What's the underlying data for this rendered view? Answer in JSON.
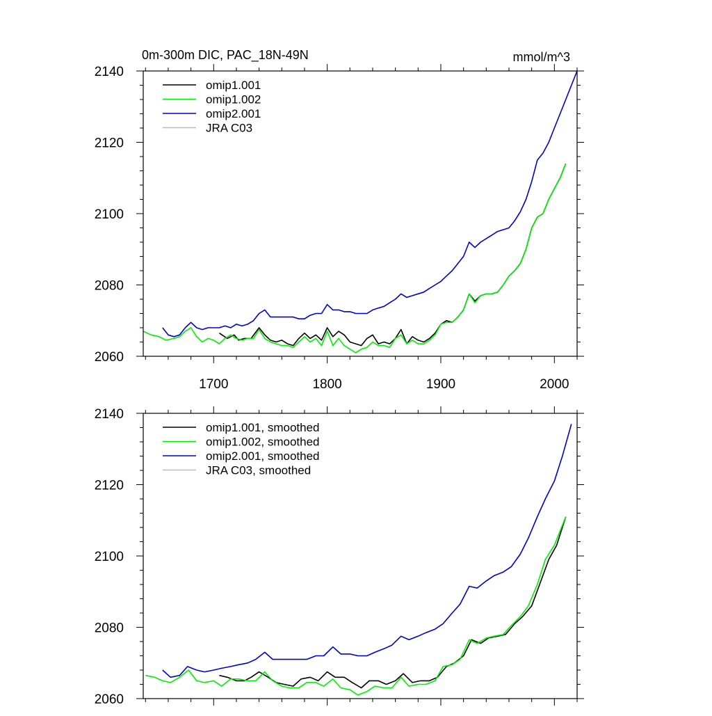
{
  "chart_data": [
    {
      "type": "line",
      "title": "0m-300m DIC, PAC_18N-49N",
      "units": "mmol/m^3",
      "xlim": [
        1638,
        2020
      ],
      "ylim": [
        2060,
        2140
      ],
      "xticks": [
        1700,
        1800,
        1900,
        2000
      ],
      "yticks": [
        2060,
        2080,
        2100,
        2120,
        2140
      ],
      "grid": false,
      "legend_position": "top-left",
      "colors": {
        "omip1.001": "#000000",
        "omip1.002": "#00ee00",
        "omip2.001": "#0000cc",
        "JRA C03": "#bbbbbb"
      },
      "series": [
        {
          "name": "omip1.001",
          "color": "#000000",
          "x": [
            1705,
            1712,
            1718,
            1722,
            1727,
            1733,
            1740,
            1745,
            1750,
            1755,
            1760,
            1765,
            1770,
            1775,
            1780,
            1785,
            1790,
            1795,
            1800,
            1805,
            1810,
            1815,
            1820,
            1825,
            1830,
            1835,
            1840,
            1845,
            1850,
            1855,
            1860,
            1865,
            1870,
            1875,
            1880,
            1885,
            1890,
            1895,
            1900,
            1905,
            1910,
            1915,
            1920,
            1925,
            1930,
            1935,
            1940,
            1945,
            1950,
            1955,
            1960,
            1965,
            1970,
            1975,
            1980,
            1985,
            1990,
            1995,
            2000,
            2005,
            2010
          ],
          "y": [
            2066.5,
            2065,
            2066,
            2064.5,
            2065,
            2065,
            2068,
            2066,
            2064.5,
            2064,
            2064.5,
            2063.5,
            2063,
            2065,
            2066.5,
            2065,
            2066,
            2064.5,
            2068,
            2065.5,
            2067,
            2066,
            2064,
            2063.5,
            2063,
            2065,
            2066,
            2063.5,
            2064,
            2063.5,
            2065,
            2067.5,
            2063.5,
            2065.5,
            2064.5,
            2064,
            2065,
            2066.5,
            2069,
            2070,
            2069.5,
            2071,
            2073,
            2077.5,
            2075.5,
            2077,
            2077.5,
            2077.5,
            2078,
            2080,
            2082.5,
            2084,
            2086,
            2090,
            2096,
            2099,
            2100,
            2104,
            2107,
            2110,
            2114
          ]
        },
        {
          "name": "omip1.002",
          "color": "#00ee00",
          "x": [
            1638,
            1645,
            1652,
            1658,
            1665,
            1670,
            1675,
            1680,
            1685,
            1690,
            1695,
            1700,
            1705,
            1710,
            1715,
            1720,
            1725,
            1730,
            1735,
            1740,
            1745,
            1750,
            1755,
            1760,
            1765,
            1770,
            1775,
            1780,
            1785,
            1790,
            1795,
            1800,
            1805,
            1810,
            1815,
            1820,
            1825,
            1830,
            1835,
            1840,
            1845,
            1850,
            1855,
            1860,
            1865,
            1870,
            1875,
            1880,
            1885,
            1890,
            1895,
            1900,
            1905,
            1910,
            1915,
            1920,
            1925,
            1930,
            1935,
            1940,
            1945,
            1950,
            1955,
            1960,
            1965,
            1970,
            1975,
            1980,
            1985,
            1990,
            1995,
            2000,
            2005,
            2010
          ],
          "y": [
            2067,
            2066,
            2065.5,
            2064.5,
            2065,
            2065.5,
            2067,
            2068,
            2065.5,
            2064,
            2065,
            2064.5,
            2063.5,
            2065,
            2066,
            2065,
            2064.5,
            2065,
            2065,
            2067.5,
            2065,
            2064,
            2063.5,
            2063,
            2063,
            2062.5,
            2064,
            2065.5,
            2064,
            2065,
            2063,
            2067,
            2063,
            2065,
            2063,
            2062,
            2061,
            2062,
            2062.5,
            2064,
            2063,
            2063,
            2062.5,
            2065,
            2066,
            2063.5,
            2064.5,
            2063.5,
            2063.5,
            2064.5,
            2066,
            2069,
            2069.5,
            2069.5,
            2071,
            2073,
            2077.5,
            2075,
            2077,
            2077.5,
            2077.5,
            2078,
            2080,
            2082.5,
            2084,
            2086,
            2090,
            2096,
            2099,
            2100,
            2104,
            2107,
            2110,
            2114
          ]
        },
        {
          "name": "omip2.001",
          "color": "#0000cc",
          "x": [
            1655,
            1660,
            1665,
            1670,
            1675,
            1680,
            1685,
            1690,
            1695,
            1700,
            1705,
            1710,
            1715,
            1720,
            1725,
            1730,
            1735,
            1740,
            1745,
            1750,
            1755,
            1760,
            1765,
            1770,
            1775,
            1780,
            1785,
            1790,
            1795,
            1800,
            1805,
            1810,
            1815,
            1820,
            1825,
            1830,
            1835,
            1840,
            1845,
            1850,
            1855,
            1860,
            1865,
            1870,
            1875,
            1880,
            1885,
            1890,
            1895,
            1900,
            1905,
            1910,
            1915,
            1920,
            1925,
            1930,
            1935,
            1940,
            1945,
            1950,
            1955,
            1960,
            1965,
            1970,
            1975,
            1980,
            1985,
            1990,
            1995,
            2000,
            2005,
            2010,
            2015,
            2020
          ],
          "y": [
            2068,
            2066,
            2065.5,
            2066,
            2068,
            2069.5,
            2068,
            2067.5,
            2068,
            2068,
            2068,
            2068.5,
            2068,
            2069,
            2068.5,
            2069,
            2070,
            2072,
            2073,
            2071,
            2071,
            2071,
            2071,
            2071,
            2070.5,
            2070.5,
            2071.5,
            2072,
            2072,
            2074.5,
            2073,
            2073,
            2072.5,
            2072.5,
            2072,
            2072,
            2072,
            2073,
            2073.5,
            2074,
            2075,
            2076,
            2077.5,
            2076.5,
            2077,
            2077.5,
            2078,
            2079,
            2080,
            2081,
            2082.5,
            2084,
            2086,
            2088,
            2092,
            2090.5,
            2092,
            2093,
            2094,
            2095,
            2095.5,
            2096,
            2098,
            2100.5,
            2104,
            2109,
            2115,
            2117,
            2120,
            2124,
            2128,
            2132,
            2136,
            2140
          ]
        },
        {
          "name": "JRA C03",
          "color": "#bbbbbb",
          "x": [],
          "y": []
        }
      ]
    },
    {
      "type": "line",
      "title": "",
      "units": "",
      "xlim": [
        1638,
        2020
      ],
      "ylim": [
        2060,
        2140
      ],
      "xticks": [
        1700,
        1800,
        1900,
        2000
      ],
      "yticks": [
        2060,
        2080,
        2100,
        2120,
        2140
      ],
      "grid": false,
      "legend_position": "top-left",
      "series": [
        {
          "name": "omip1.001, smoothed",
          "color": "#000000",
          "x": [
            1705,
            1712,
            1720,
            1727,
            1733,
            1740,
            1748,
            1755,
            1762,
            1770,
            1777,
            1785,
            1792,
            1800,
            1807,
            1815,
            1822,
            1830,
            1837,
            1845,
            1852,
            1860,
            1867,
            1875,
            1882,
            1890,
            1897,
            1905,
            1912,
            1920,
            1927,
            1935,
            1942,
            1950,
            1957,
            1965,
            1972,
            1980,
            1987,
            1995,
            2002,
            2010
          ],
          "y": [
            2066.5,
            2066,
            2065,
            2065,
            2066,
            2067.5,
            2066,
            2064.5,
            2064,
            2063.5,
            2065.5,
            2066,
            2065,
            2067.5,
            2066,
            2066,
            2064.5,
            2063,
            2065,
            2065,
            2064,
            2065,
            2067,
            2064.5,
            2065,
            2065,
            2066,
            2069,
            2070,
            2072,
            2076.5,
            2075.5,
            2077,
            2077.5,
            2078,
            2081,
            2083,
            2086,
            2092,
            2099,
            2103,
            2111
          ]
        },
        {
          "name": "omip1.002, smoothed",
          "color": "#00ee00",
          "x": [
            1640,
            1648,
            1655,
            1662,
            1670,
            1678,
            1685,
            1692,
            1700,
            1707,
            1715,
            1722,
            1730,
            1737,
            1745,
            1752,
            1760,
            1767,
            1775,
            1782,
            1790,
            1797,
            1805,
            1812,
            1820,
            1827,
            1835,
            1842,
            1850,
            1857,
            1865,
            1872,
            1880,
            1887,
            1895,
            1902,
            1910,
            1917,
            1925,
            1932,
            1940,
            1947,
            1955,
            1962,
            1970,
            1977,
            1985,
            1992,
            2000,
            2010
          ],
          "y": [
            2066.5,
            2066,
            2065,
            2064.5,
            2066,
            2068,
            2065,
            2064.5,
            2065,
            2063.5,
            2065.5,
            2065.5,
            2065,
            2065,
            2067.5,
            2065,
            2063.5,
            2063,
            2063,
            2064.5,
            2064.5,
            2063.5,
            2065.5,
            2063,
            2062.5,
            2061,
            2062,
            2063.5,
            2063,
            2063,
            2066,
            2063.5,
            2064,
            2064,
            2065,
            2069,
            2069.5,
            2071,
            2076.5,
            2075.5,
            2077,
            2077.5,
            2078,
            2080.5,
            2083,
            2086,
            2092,
            2099,
            2103,
            2111
          ]
        },
        {
          "name": "omip2.001, smoothed",
          "color": "#0000cc",
          "x": [
            1655,
            1662,
            1670,
            1677,
            1685,
            1692,
            1700,
            1707,
            1715,
            1722,
            1730,
            1737,
            1745,
            1752,
            1760,
            1767,
            1775,
            1782,
            1790,
            1797,
            1805,
            1812,
            1820,
            1827,
            1835,
            1842,
            1850,
            1857,
            1865,
            1872,
            1880,
            1887,
            1895,
            1902,
            1910,
            1917,
            1925,
            1932,
            1940,
            1947,
            1955,
            1962,
            1970,
            1977,
            1985,
            1992,
            2000,
            2007,
            2015
          ],
          "y": [
            2068,
            2066,
            2066.5,
            2069,
            2068,
            2067.5,
            2068,
            2068.5,
            2069,
            2069.5,
            2070,
            2071,
            2073,
            2071,
            2071,
            2071,
            2071,
            2071,
            2072,
            2072,
            2074.5,
            2072.5,
            2072.5,
            2072,
            2072,
            2073,
            2074,
            2075,
            2077.5,
            2076.5,
            2077.5,
            2078.5,
            2079.5,
            2081,
            2084,
            2086.5,
            2091.5,
            2091,
            2093,
            2094.5,
            2095.5,
            2097,
            2100.5,
            2105,
            2111,
            2116,
            2121,
            2128,
            2137
          ]
        },
        {
          "name": "JRA C03, smoothed",
          "color": "#bbbbbb",
          "x": [],
          "y": []
        }
      ]
    }
  ]
}
